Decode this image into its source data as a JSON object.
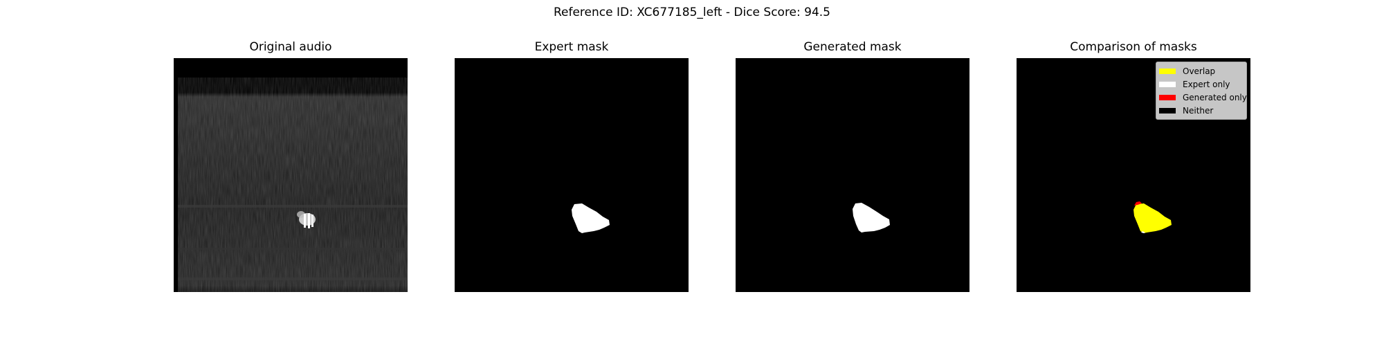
{
  "suptitle": "Reference ID: XC677185_left - Dice Score: 94.5",
  "panels": {
    "original": {
      "title": "Original audio"
    },
    "expert": {
      "title": "Expert mask"
    },
    "generated": {
      "title": "Generated mask"
    },
    "comparison": {
      "title": "Comparison of masks"
    }
  },
  "legend": {
    "items": [
      {
        "label": "Overlap",
        "color": "#ffff00"
      },
      {
        "label": "Expert only",
        "color": "#ffffff"
      },
      {
        "label": "Generated only",
        "color": "#ff0000"
      },
      {
        "label": "Neither",
        "color": "#000000"
      }
    ]
  }
}
